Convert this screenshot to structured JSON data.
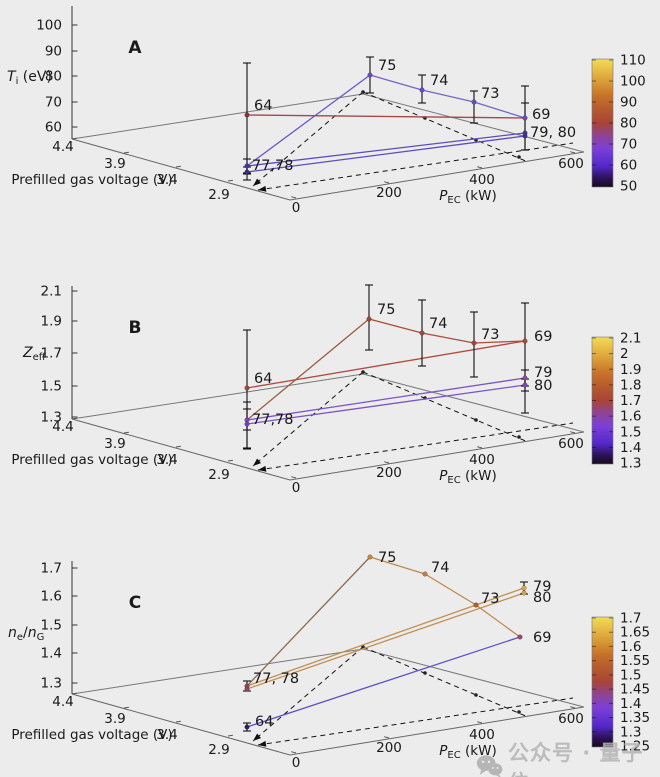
{
  "page": {
    "background": "#ececec",
    "text_color": "#1a1a1a"
  },
  "watermark": {
    "icon": "wechat-icon",
    "text": "公众号 · 量子位",
    "color": "#b4b4b4"
  },
  "palette_stops": [
    [
      0.0,
      "#170a20"
    ],
    [
      0.07,
      "#2c1258"
    ],
    [
      0.16,
      "#5328c8"
    ],
    [
      0.3,
      "#7c3fd8"
    ],
    [
      0.4,
      "#8e4494"
    ],
    [
      0.5,
      "#a84438"
    ],
    [
      0.62,
      "#b85c2c"
    ],
    [
      0.72,
      "#c87428"
    ],
    [
      0.82,
      "#d89b36"
    ],
    [
      0.92,
      "#e8bf48"
    ],
    [
      1.0,
      "#f2dc55"
    ]
  ],
  "chart_data": {
    "type": "line",
    "view": "three stacked gnuplot-style 3D scatter/line panels with colorbars",
    "x_axis": {
      "label": "P_EC (kW)",
      "label_parts": [
        {
          "t": "P",
          "style": "italic"
        },
        {
          "t": "EC",
          "style": "sub"
        },
        {
          "t": " (kW)",
          "style": "normal"
        }
      ],
      "ticks": [
        "0",
        "200",
        "400",
        "600"
      ],
      "range_kw": [
        0,
        600
      ]
    },
    "y_axis": {
      "label": "Prefilled gas voltage (V)",
      "ticks": [
        "4.4",
        "3.9",
        "3.4",
        "2.9"
      ],
      "range_v": [
        2.9,
        4.4
      ]
    },
    "discharges": [
      {
        "id": "64",
        "prefill_voltage_v": 3.3,
        "p_ec_kw": 30
      },
      {
        "id": "77",
        "prefill_voltage_v": 3.3,
        "p_ec_kw": 30
      },
      {
        "id": "78",
        "prefill_voltage_v": 3.3,
        "p_ec_kw": 30
      },
      {
        "id": "75",
        "prefill_voltage_v": 4.3,
        "p_ec_kw": 530
      },
      {
        "id": "74",
        "prefill_voltage_v": 4.2,
        "p_ec_kw": 600
      },
      {
        "id": "73",
        "prefill_voltage_v": 3.7,
        "p_ec_kw": 600
      },
      {
        "id": "69",
        "prefill_voltage_v": 3.2,
        "p_ec_kw": 600
      },
      {
        "id": "79",
        "prefill_voltage_v": 3.2,
        "p_ec_kw": 600
      },
      {
        "id": "80",
        "prefill_voltage_v": 3.2,
        "p_ec_kw": 600
      }
    ],
    "panels": [
      {
        "id": "A",
        "letter": "A",
        "z_axis": {
          "label": "T_i (eV)",
          "label_parts": [
            {
              "t": "T",
              "style": "italic"
            },
            {
              "t": "i",
              "style": "sub"
            },
            {
              "t": " (eV)",
              "style": "normal"
            }
          ],
          "ticks": [
            "60",
            "70",
            "80",
            "90",
            "100"
          ]
        },
        "colorbar": {
          "min": 50,
          "max": 110,
          "ticks": [
            "110",
            "100",
            "90",
            "80",
            "70",
            "60",
            "50"
          ]
        },
        "points": [
          {
            "id": "64",
            "value": 79,
            "err_plus": 21,
            "err_minus": 23,
            "label": "64",
            "color": "#8a3535"
          },
          {
            "id": "77",
            "value": 59,
            "err_plus": 3,
            "err_minus": 3,
            "label": "77,78",
            "color": "#46339e"
          },
          {
            "id": "78",
            "value": 56,
            "err_plus": 2.5,
            "err_minus": 3,
            "label": null,
            "color": "#3b2b86"
          },
          {
            "id": "75",
            "value": 66,
            "err_plus": 7,
            "err_minus": 7,
            "label": "75",
            "color": "#6a4cc4"
          },
          {
            "id": "74",
            "value": 65,
            "err_plus": 6,
            "err_minus": 5,
            "label": "74",
            "color": "#684ac2"
          },
          {
            "id": "73",
            "value": 65,
            "err_plus": 4,
            "err_minus": 8,
            "label": "73",
            "color": "#6a4cc4"
          },
          {
            "id": "69",
            "value": 64,
            "err_plus": 13,
            "err_minus": 13,
            "label": "69",
            "color": "#684ac2"
          },
          {
            "id": "79",
            "value": 60,
            "err_plus": 12,
            "err_minus": 7,
            "label": "79, 80",
            "color": "#4b37a6"
          },
          {
            "id": "80",
            "value": 58,
            "err_plus": 0,
            "err_minus": 0,
            "label": null,
            "color": "#42309a"
          }
        ],
        "lines": [
          {
            "between": [
              "77",
              "75"
            ],
            "color": "#6f55c8"
          },
          {
            "between": [
              "75",
              "74",
              "73",
              "69"
            ],
            "color": "#7a64c4"
          },
          {
            "between": [
              "64",
              "69"
            ],
            "color": "#a24848"
          },
          {
            "between": [
              "77",
              "79"
            ],
            "color": "#5c4cc0"
          },
          {
            "between": [
              "78",
              "80"
            ],
            "color": "#5c4cc0"
          }
        ]
      },
      {
        "id": "B",
        "letter": "B",
        "z_axis": {
          "label": "Z_eff",
          "label_parts": [
            {
              "t": "Z",
              "style": "italic"
            },
            {
              "t": "eff",
              "style": "sub"
            }
          ],
          "ticks": [
            "1.3",
            "1.5",
            "1.7",
            "1.9",
            "2.1"
          ]
        },
        "colorbar": {
          "min": 1.3,
          "max": 2.1,
          "ticks": [
            "2.1",
            "2",
            "1.9",
            "1.8",
            "1.7",
            "1.6",
            "1.5",
            "1.4",
            "1.3"
          ]
        },
        "points": [
          {
            "id": "64",
            "value": 1.73,
            "err_plus": 0.37,
            "err_minus": 0.27,
            "label": "64",
            "color": "#a04838"
          },
          {
            "id": "77",
            "value": 1.53,
            "err_plus": 0.11,
            "err_minus": 0.18,
            "label": "77,78",
            "color": "#7a45c0"
          },
          {
            "id": "78",
            "value": 1.51,
            "err_plus": 0.1,
            "err_minus": 0.16,
            "label": null,
            "color": "#7040b8"
          },
          {
            "id": "75",
            "value": 1.69,
            "err_plus": 0.22,
            "err_minus": 0.2,
            "label": "75",
            "color": "#9a4a42"
          },
          {
            "id": "74",
            "value": 1.69,
            "err_plus": 0.21,
            "err_minus": 0.21,
            "label": "74",
            "color": "#9a4a42"
          },
          {
            "id": "73",
            "value": 1.71,
            "err_plus": 0.2,
            "err_minus": 0.22,
            "label": "73",
            "color": "#a04838"
          },
          {
            "id": "69",
            "value": 1.81,
            "err_plus": 0.24,
            "err_minus": 0.46,
            "label": "69",
            "color": "#ab4a30"
          },
          {
            "id": "79",
            "value": 1.58,
            "err_plus": 0.05,
            "err_minus": 0.05,
            "label": "79",
            "color": "#8a48a0"
          },
          {
            "id": "80",
            "value": 1.53,
            "err_plus": 0.04,
            "err_minus": 0.04,
            "label": "80",
            "color": "#7a45c0"
          }
        ],
        "lines": [
          {
            "between": [
              "77",
              "75"
            ],
            "color": "#9a5a42"
          },
          {
            "between": [
              "75",
              "74",
              "73",
              "69"
            ],
            "color": "#aa4e3c"
          },
          {
            "between": [
              "64",
              "69"
            ],
            "color": "#b24a42"
          },
          {
            "between": [
              "77",
              "79"
            ],
            "color": "#7a55c4"
          },
          {
            "between": [
              "78",
              "80"
            ],
            "color": "#7a55c4"
          }
        ]
      },
      {
        "id": "C",
        "letter": "C",
        "z_axis": {
          "label": "n_e/n_G",
          "label_parts": [
            {
              "t": "n",
              "style": "italic"
            },
            {
              "t": "e",
              "style": "sub"
            },
            {
              "t": "/",
              "style": "normal"
            },
            {
              "t": "n",
              "style": "italic"
            },
            {
              "t": "G",
              "style": "sub"
            }
          ],
          "ticks": [
            "1.3",
            "1.4",
            "1.5",
            "1.6",
            "1.7"
          ]
        },
        "colorbar": {
          "min": 1.25,
          "max": 1.7,
          "ticks": [
            "1.7",
            "1.65",
            "1.6",
            "1.55",
            "1.5",
            "1.45",
            "1.4",
            "1.35",
            "1.3",
            "1.25"
          ]
        },
        "points": [
          {
            "id": "64",
            "value": 1.29,
            "err_plus": 0.015,
            "err_minus": 0.015,
            "label": "64",
            "color": "#2a1f60"
          },
          {
            "id": "77",
            "value": 1.43,
            "err_plus": 0.017,
            "err_minus": 0.017,
            "label": "77, 78",
            "color": "#94485a"
          },
          {
            "id": "78",
            "value": 1.42,
            "err_plus": 0,
            "err_minus": 0,
            "label": null,
            "color": "#8e4660"
          },
          {
            "id": "75",
            "value": 1.63,
            "err_plus": 0,
            "err_minus": 0,
            "label": "75",
            "color": "#c8863c"
          },
          {
            "id": "74",
            "value": 1.61,
            "err_plus": 0,
            "err_minus": 0,
            "label": "74",
            "color": "#c47f3a"
          },
          {
            "id": "73",
            "value": 1.55,
            "err_plus": 0,
            "err_minus": 0,
            "label": "73",
            "color": "#b06030"
          },
          {
            "id": "69",
            "value": 1.49,
            "err_plus": 0,
            "err_minus": 0,
            "label": "69",
            "color": "#9a4a68"
          },
          {
            "id": "79",
            "value": 1.66,
            "err_plus": 0.02,
            "err_minus": 0.02,
            "label": "79",
            "color": "#d8aa48"
          },
          {
            "id": "80",
            "value": 1.64,
            "err_plus": 0,
            "err_minus": 0,
            "label": "80",
            "color": "#d4a244"
          }
        ],
        "lines": [
          {
            "between": [
              "77",
              "75"
            ],
            "color": "#8c6a52"
          },
          {
            "between": [
              "75",
              "74",
              "73",
              "69"
            ],
            "color": "#c08850"
          },
          {
            "between": [
              "64",
              "69"
            ],
            "color": "#5b50c8"
          },
          {
            "between": [
              "77",
              "79"
            ],
            "color": "#bf9055"
          },
          {
            "between": [
              "78",
              "80"
            ],
            "color": "#bf9055"
          }
        ]
      }
    ]
  }
}
